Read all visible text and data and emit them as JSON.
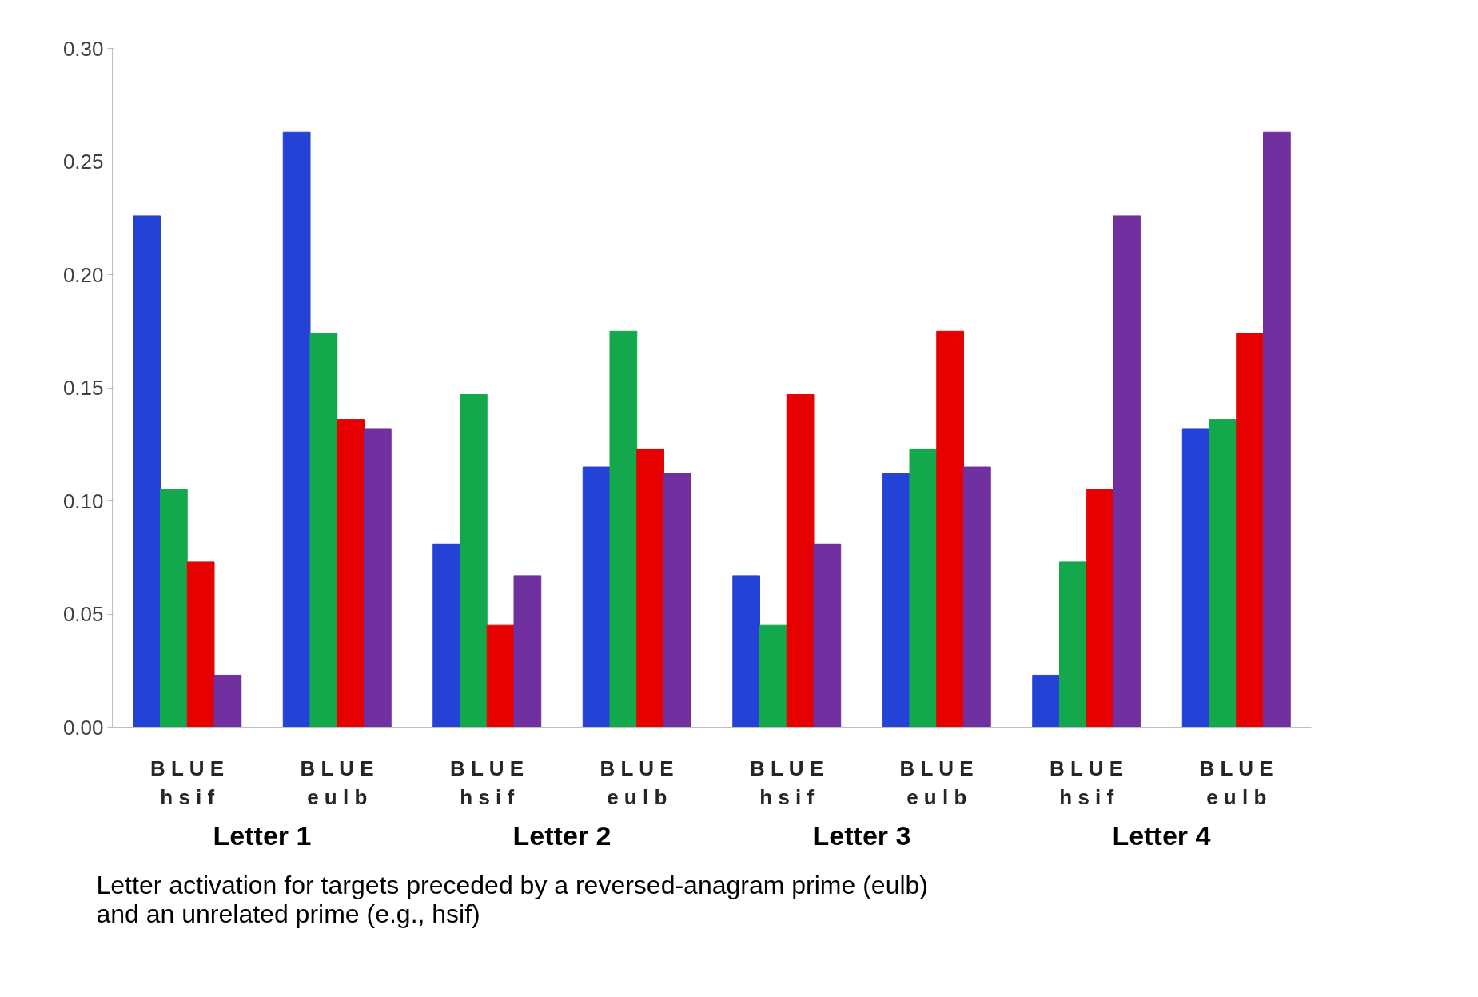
{
  "chart_data": {
    "type": "bar",
    "categories": [
      "B L U E\nh s i f",
      "B L U E\ne u l b",
      "B L U E\nh s i f",
      "B L U E\ne u l b",
      "B L U E\nh s i f",
      "B L U E\ne u l b",
      "B L U E\nh s i f",
      "B L U E\ne u l b"
    ],
    "series": [
      {
        "color": "#2442d6",
        "values": [
          0.226,
          0.263,
          0.081,
          0.115,
          0.067,
          0.112,
          0.023,
          0.132
        ]
      },
      {
        "color": "#14a84c",
        "values": [
          0.105,
          0.174,
          0.147,
          0.175,
          0.045,
          0.123,
          0.073,
          0.136
        ]
      },
      {
        "color": "#e60000",
        "values": [
          0.073,
          0.136,
          0.045,
          0.123,
          0.147,
          0.175,
          0.105,
          0.174
        ]
      },
      {
        "color": "#7030a0",
        "values": [
          0.023,
          0.132,
          0.067,
          0.112,
          0.081,
          0.115,
          0.226,
          0.263
        ]
      }
    ],
    "ylim": [
      0,
      0.3
    ],
    "yticks": [
      {
        "value": 0,
        "label": "0.00"
      },
      {
        "value": 0.05,
        "label": "0.05"
      },
      {
        "value": 0.1,
        "label": "0.10"
      },
      {
        "value": 0.15,
        "label": "0.15"
      },
      {
        "value": 0.2,
        "label": "0.20"
      },
      {
        "value": 0.25,
        "label": "0.25"
      },
      {
        "value": 0.3,
        "label": "0.30"
      }
    ],
    "annotations": [
      "Letter 1",
      "Letter 2",
      "Letter 3",
      "Letter 4",
      "Letter activation for targets preceded by a reversed-anagram prime (eulb)\nand an unrelated prime (e.g., hsif)"
    ],
    "stacked": false
  }
}
